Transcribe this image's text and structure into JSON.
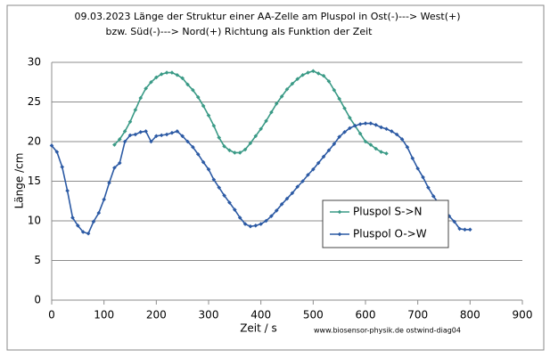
{
  "chart_data": {
    "type": "line",
    "title": "09.03.2023  Länge der Struktur einer AA-Zelle am Pluspol  in      Ost(-)---> West(+)",
    "subtitle": "bzw. Süd(-)---> Nord(+) Richtung  als Funktion der Zeit",
    "x_label": "Zeit / s",
    "y_label": "Länge /cm",
    "annotation": "www.biosensor-physik.de  ostwind-diag04",
    "xlim": [
      0,
      900
    ],
    "xticks": [
      0,
      100,
      200,
      300,
      400,
      500,
      600,
      700,
      800,
      900
    ],
    "ylim": [
      0,
      30
    ],
    "yticks": [
      0,
      5,
      10,
      15,
      20,
      25,
      30
    ],
    "grid": true,
    "series": [
      {
        "name": "Pluspol S->N",
        "color": "#3a9a86",
        "x": [
          120,
          130,
          140,
          150,
          160,
          170,
          180,
          190,
          200,
          210,
          220,
          230,
          240,
          250,
          260,
          270,
          280,
          290,
          300,
          310,
          320,
          330,
          340,
          350,
          360,
          370,
          380,
          390,
          400,
          410,
          420,
          430,
          440,
          450,
          460,
          470,
          480,
          490,
          500,
          510,
          520,
          530,
          540,
          550,
          560,
          570,
          580,
          590,
          600,
          610,
          620,
          630,
          640
        ],
        "values": [
          19.6,
          20.3,
          21.3,
          22.5,
          24.0,
          25.5,
          26.7,
          27.5,
          28.1,
          28.5,
          28.7,
          28.7,
          28.4,
          28.0,
          27.2,
          26.5,
          25.6,
          24.5,
          23.3,
          22.0,
          20.5,
          19.4,
          18.9,
          18.6,
          18.6,
          19.0,
          19.8,
          20.7,
          21.6,
          22.6,
          23.7,
          24.8,
          25.7,
          26.6,
          27.3,
          27.9,
          28.4,
          28.7,
          28.9,
          28.6,
          28.3,
          27.6,
          26.5,
          25.4,
          24.2,
          23.0,
          22.0,
          21.0,
          20.0,
          19.6,
          19.1,
          18.7,
          18.5
        ]
      },
      {
        "name": "Pluspol O->W",
        "color": "#2c5aa4",
        "x": [
          0,
          10,
          20,
          30,
          40,
          50,
          60,
          70,
          80,
          90,
          100,
          110,
          120,
          130,
          140,
          150,
          160,
          170,
          180,
          190,
          200,
          210,
          220,
          230,
          240,
          250,
          260,
          270,
          280,
          290,
          300,
          310,
          320,
          330,
          340,
          350,
          360,
          370,
          380,
          390,
          400,
          410,
          420,
          430,
          440,
          450,
          460,
          470,
          480,
          490,
          500,
          510,
          520,
          530,
          540,
          550,
          560,
          570,
          580,
          590,
          600,
          610,
          620,
          630,
          640,
          650,
          660,
          670,
          680,
          690,
          700,
          710,
          720,
          730,
          740,
          750,
          760,
          770,
          780,
          790,
          800
        ],
        "values": [
          19.5,
          18.7,
          16.8,
          13.8,
          10.4,
          9.4,
          8.6,
          8.4,
          9.9,
          11.0,
          12.7,
          14.8,
          16.7,
          17.3,
          20.0,
          20.8,
          20.9,
          21.2,
          21.3,
          20.0,
          20.7,
          20.8,
          20.9,
          21.1,
          21.3,
          20.7,
          20.0,
          19.3,
          18.4,
          17.4,
          16.5,
          15.2,
          14.2,
          13.2,
          12.3,
          11.4,
          10.4,
          9.6,
          9.3,
          9.4,
          9.6,
          10.0,
          10.6,
          11.3,
          12.1,
          12.8,
          13.5,
          14.3,
          15.0,
          15.8,
          16.5,
          17.3,
          18.1,
          18.9,
          19.7,
          20.6,
          21.2,
          21.7,
          22.0,
          22.2,
          22.3,
          22.3,
          22.1,
          21.8,
          21.6,
          21.3,
          20.9,
          20.3,
          19.3,
          17.9,
          16.6,
          15.5,
          14.2,
          13.1,
          12.2,
          11.4,
          10.6,
          9.9,
          9.0,
          8.9,
          8.9
        ]
      }
    ]
  }
}
